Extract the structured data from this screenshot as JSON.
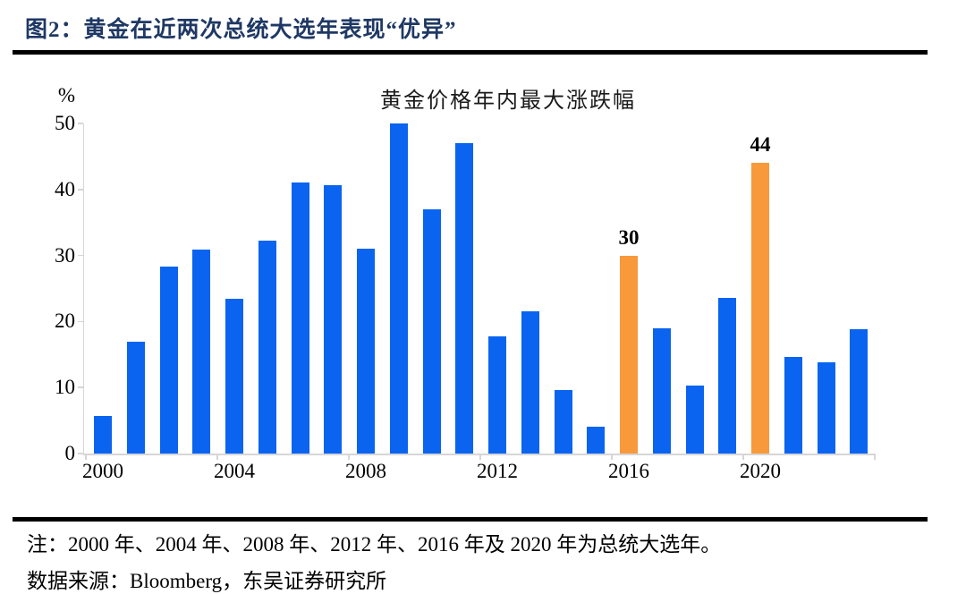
{
  "header": {
    "caption": "图2：黄金在近两次总统大选年表现“优异”"
  },
  "chart_data": {
    "type": "bar",
    "title": "黄金价格年内最大涨跌幅",
    "ylabel": "%",
    "xlabel": "",
    "categories": [
      2000,
      2001,
      2002,
      2003,
      2004,
      2005,
      2006,
      2007,
      2008,
      2009,
      2010,
      2011,
      2012,
      2013,
      2014,
      2015,
      2016,
      2017,
      2018,
      2019,
      2020,
      2021,
      2022,
      2023
    ],
    "values": [
      5.7,
      17.0,
      28.3,
      30.9,
      23.5,
      32.3,
      41.0,
      40.6,
      31.0,
      50.0,
      37.0,
      47.0,
      17.8,
      21.6,
      9.6,
      4.1,
      30.0,
      19.0,
      10.3,
      23.6,
      44.0,
      14.7,
      13.8,
      18.9
    ],
    "highlighted_categories": [
      2016,
      2020
    ],
    "data_labels": [
      {
        "category": 2016,
        "text": "30"
      },
      {
        "category": 2020,
        "text": "44"
      }
    ],
    "ylim": [
      0,
      50
    ],
    "yticks": [
      0,
      10,
      20,
      30,
      40,
      50
    ],
    "xtick_labels": [
      2000,
      2004,
      2008,
      2012,
      2016,
      2020
    ],
    "grid": false,
    "legend": "none",
    "colors": {
      "bar": "#0a64f0",
      "highlight": "#f8993b",
      "axis": "#d6d6d6",
      "caption": "#1f3864"
    }
  },
  "footer": {
    "note": "注：2000 年、2004 年、2008 年、2012 年、2016 年及 2020 年为总统大选年。",
    "source": "数据来源：Bloomberg，东吴证券研究所"
  }
}
